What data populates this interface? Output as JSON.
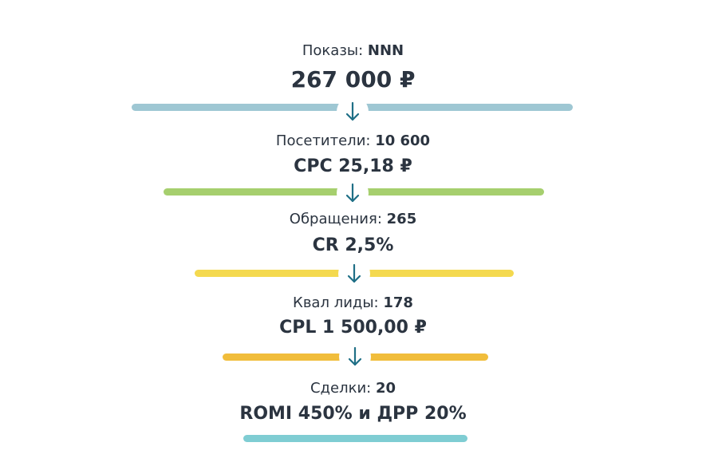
{
  "funnel": {
    "stages": [
      {
        "label": "Показы:",
        "value": "NNN",
        "metric": "267 000 ₽",
        "bar_color": "#9ec7d3"
      },
      {
        "label": "Посетители:",
        "value": "10 600",
        "metric": "CPC 25,18 ₽",
        "bar_color": "#a6cf6e"
      },
      {
        "label": "Обращения:",
        "value": "265",
        "metric": "CR 2,5%",
        "bar_color": "#f4d94f"
      },
      {
        "label": "Квал лиды:",
        "value": "178",
        "metric": "CPL 1 500,00 ₽",
        "bar_color": "#f1bd3b"
      },
      {
        "label": "Сделки:",
        "value": "20",
        "metric": "ROMI 450% и ДРР 20%",
        "bar_color": "#7fcdd3"
      }
    ],
    "arrow_icon": "arrow-down-icon",
    "arrow_color": "#1f6f86"
  }
}
